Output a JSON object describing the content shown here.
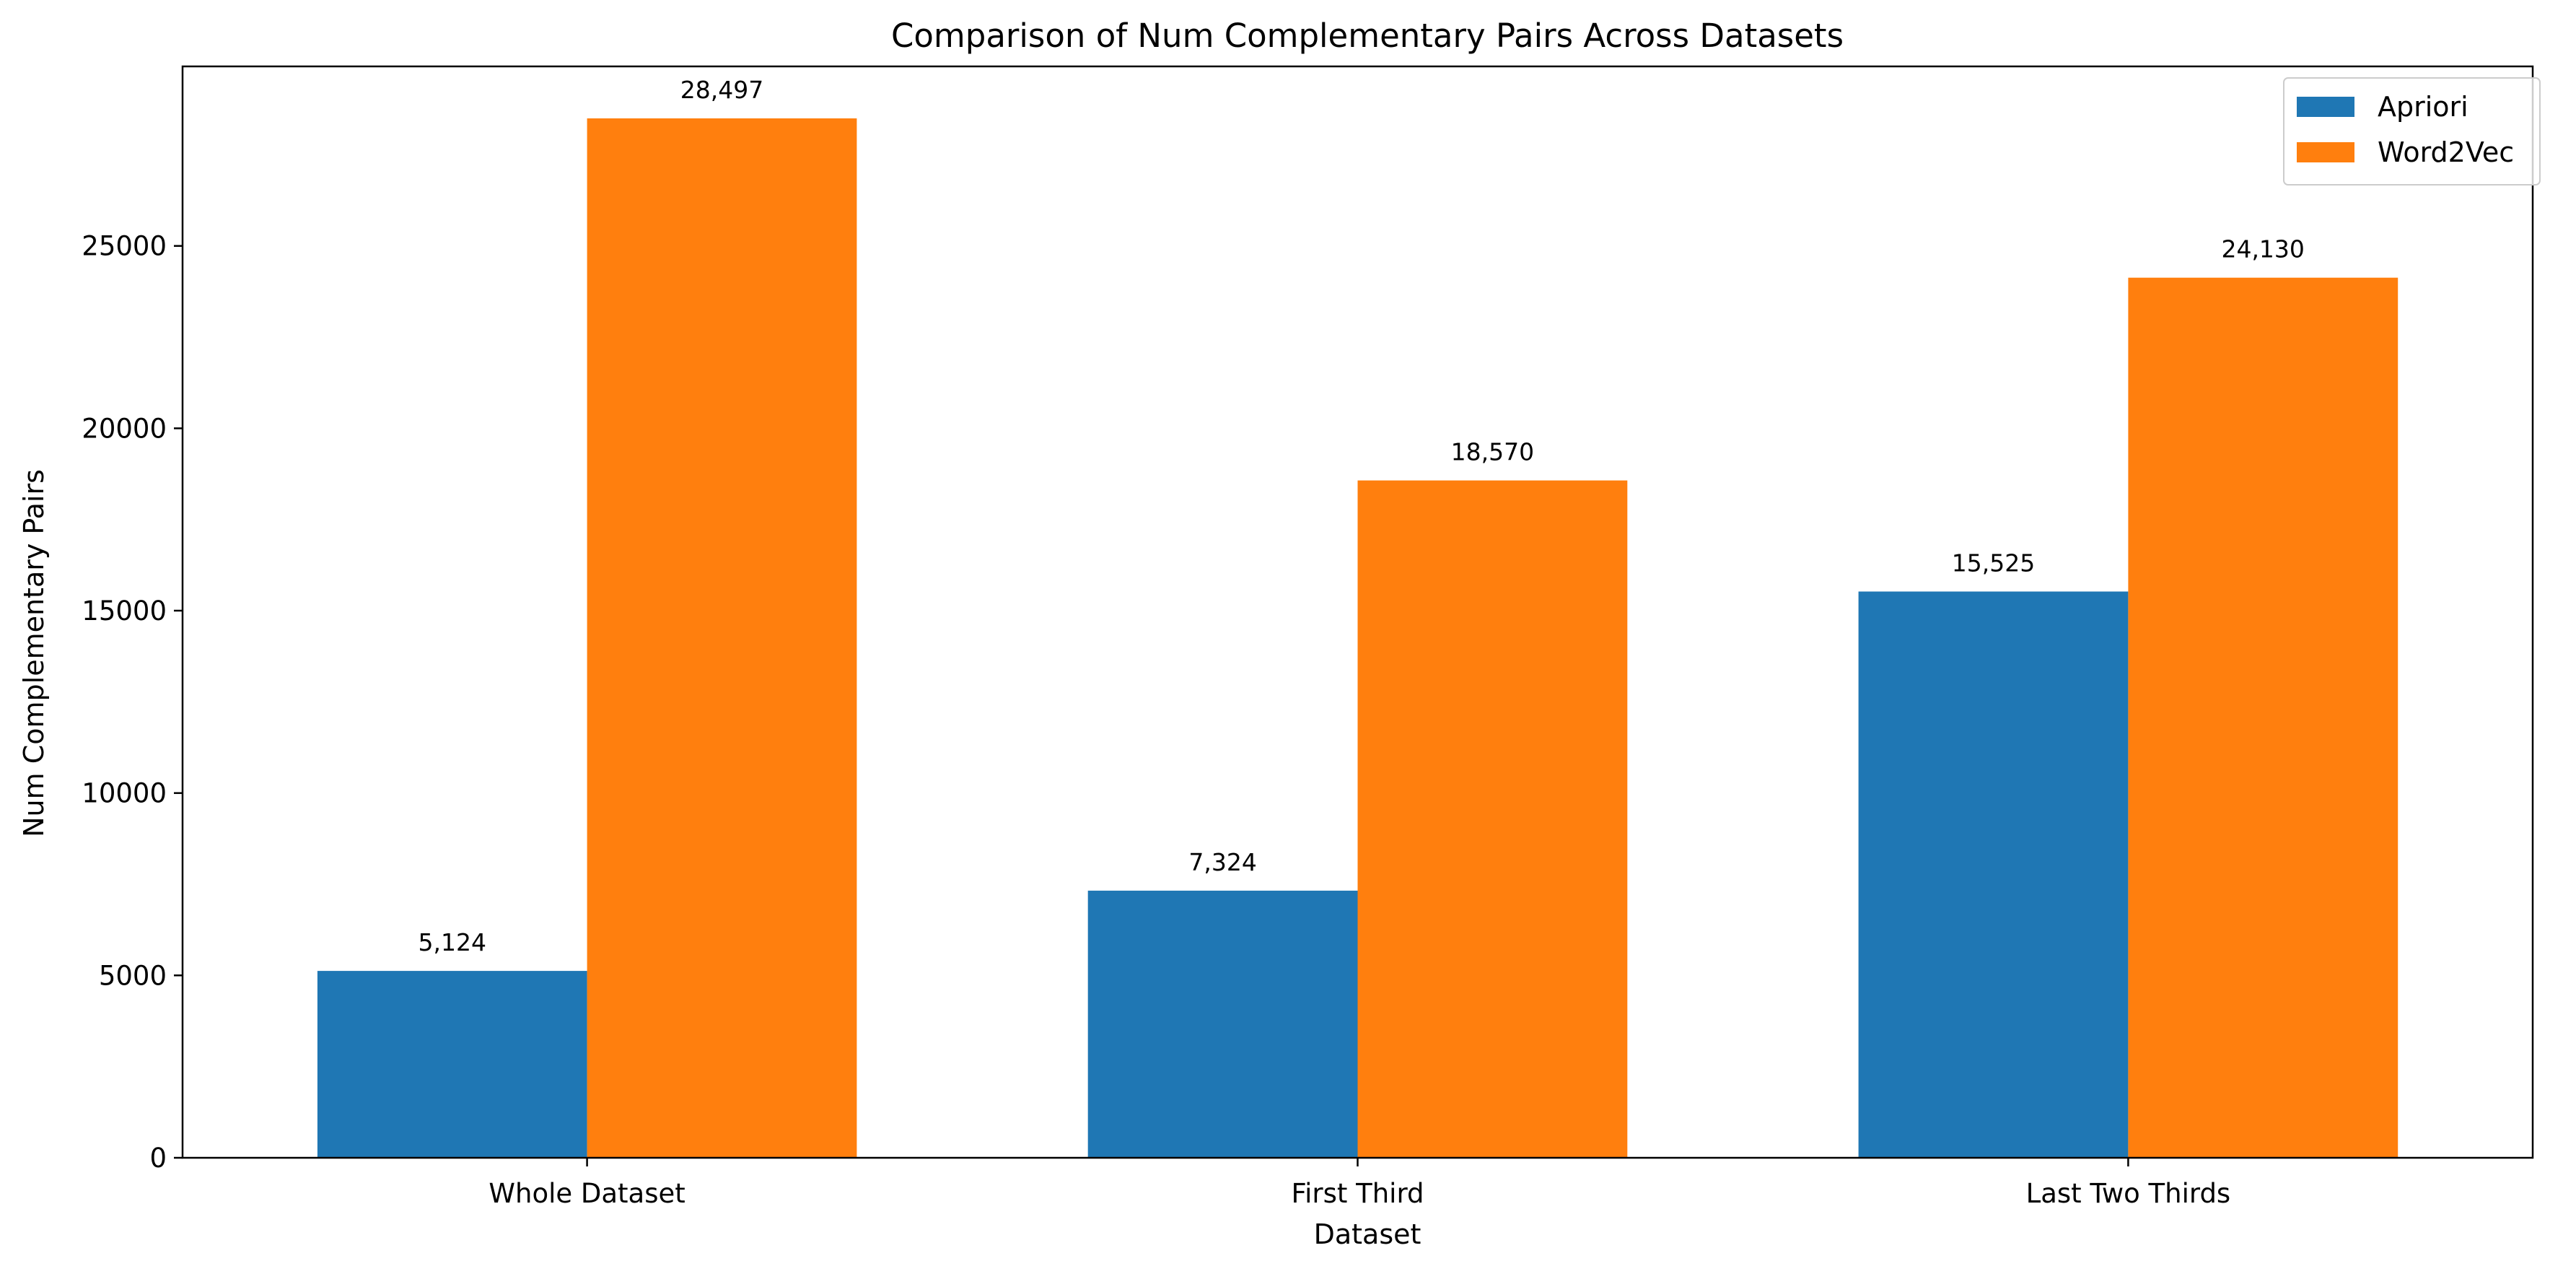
{
  "chart_data": {
    "type": "bar",
    "title": "Comparison of Num Complementary Pairs Across Datasets",
    "xlabel": "Dataset",
    "ylabel": "Num Complementary Pairs",
    "categories": [
      "Whole Dataset",
      "First Third",
      "Last Two Thirds"
    ],
    "series": [
      {
        "name": "Apriori",
        "color": "#1f77b4",
        "values": [
          5124,
          7324,
          15525
        ],
        "labels": [
          "5,124",
          "7,324",
          "15,525"
        ]
      },
      {
        "name": "Word2Vec",
        "color": "#ff7f0e",
        "values": [
          28497,
          18570,
          24130
        ],
        "labels": [
          "28,497",
          "18,570",
          "24,130"
        ]
      }
    ],
    "ylim": [
      0,
      29922
    ],
    "yticks": [
      0,
      5000,
      10000,
      15000,
      20000,
      25000
    ],
    "ytick_labels": [
      "0",
      "5000",
      "10000",
      "15000",
      "20000",
      "25000"
    ],
    "grid": false,
    "legend_position": "top-right"
  }
}
